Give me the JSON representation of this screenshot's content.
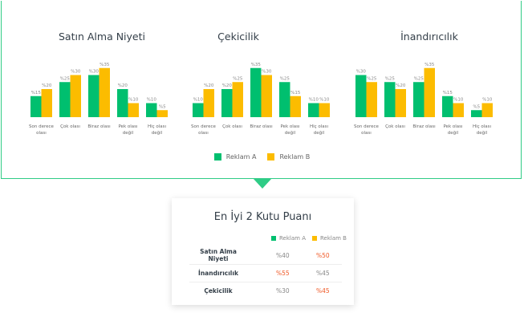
{
  "colors": {
    "reklam_a": "#00bf6f",
    "reklam_b": "#fcbc00",
    "highlight": "#f05a28",
    "border": "#2fcc86"
  },
  "chart_data": [
    {
      "type": "bar",
      "title": "Satın Alma Niyeti",
      "categories": [
        "Son derece olası",
        "Çok olası",
        "Biraz olası",
        "Pek olası değil",
        "Hiç olası değil"
      ],
      "series": [
        {
          "name": "Reklam A",
          "values": [
            15,
            25,
            30,
            20,
            10
          ]
        },
        {
          "name": "Reklam B",
          "values": [
            20,
            30,
            35,
            10,
            5
          ]
        }
      ],
      "value_prefix": "%"
    },
    {
      "type": "bar",
      "title": "Çekicilik",
      "categories": [
        "Son derece olası",
        "Çok olası",
        "Biraz olası",
        "Pek olası değil",
        "Hiç olası değil"
      ],
      "series": [
        {
          "name": "Reklam A",
          "values": [
            10,
            20,
            35,
            25,
            10
          ]
        },
        {
          "name": "Reklam B",
          "values": [
            20,
            25,
            30,
            15,
            10
          ]
        }
      ],
      "value_prefix": "%"
    },
    {
      "type": "bar",
      "title": "İnandırıcılık",
      "categories": [
        "Son derece olası",
        "Çok olası",
        "Biraz olası",
        "Pek olası değil",
        "Hiç olası değil"
      ],
      "series": [
        {
          "name": "Reklam A",
          "values": [
            30,
            25,
            25,
            15,
            5
          ]
        },
        {
          "name": "Reklam B",
          "values": [
            25,
            20,
            35,
            10,
            10
          ]
        }
      ],
      "value_prefix": "%"
    }
  ],
  "legend": {
    "a": "Reklam A",
    "b": "Reklam B"
  },
  "card": {
    "title": "En İyi 2 Kutu Puanı",
    "legend": {
      "a": "Reklam A",
      "b": "Reklam B"
    },
    "rows": [
      {
        "label": "Satın Alma Niyeti",
        "a": "%40",
        "b": "%50",
        "winner": "b"
      },
      {
        "label": "İnandırıcılık",
        "a": "%55",
        "b": "%45",
        "winner": "a"
      },
      {
        "label": "Çekicilik",
        "a": "%30",
        "b": "%45",
        "winner": "b"
      }
    ]
  }
}
